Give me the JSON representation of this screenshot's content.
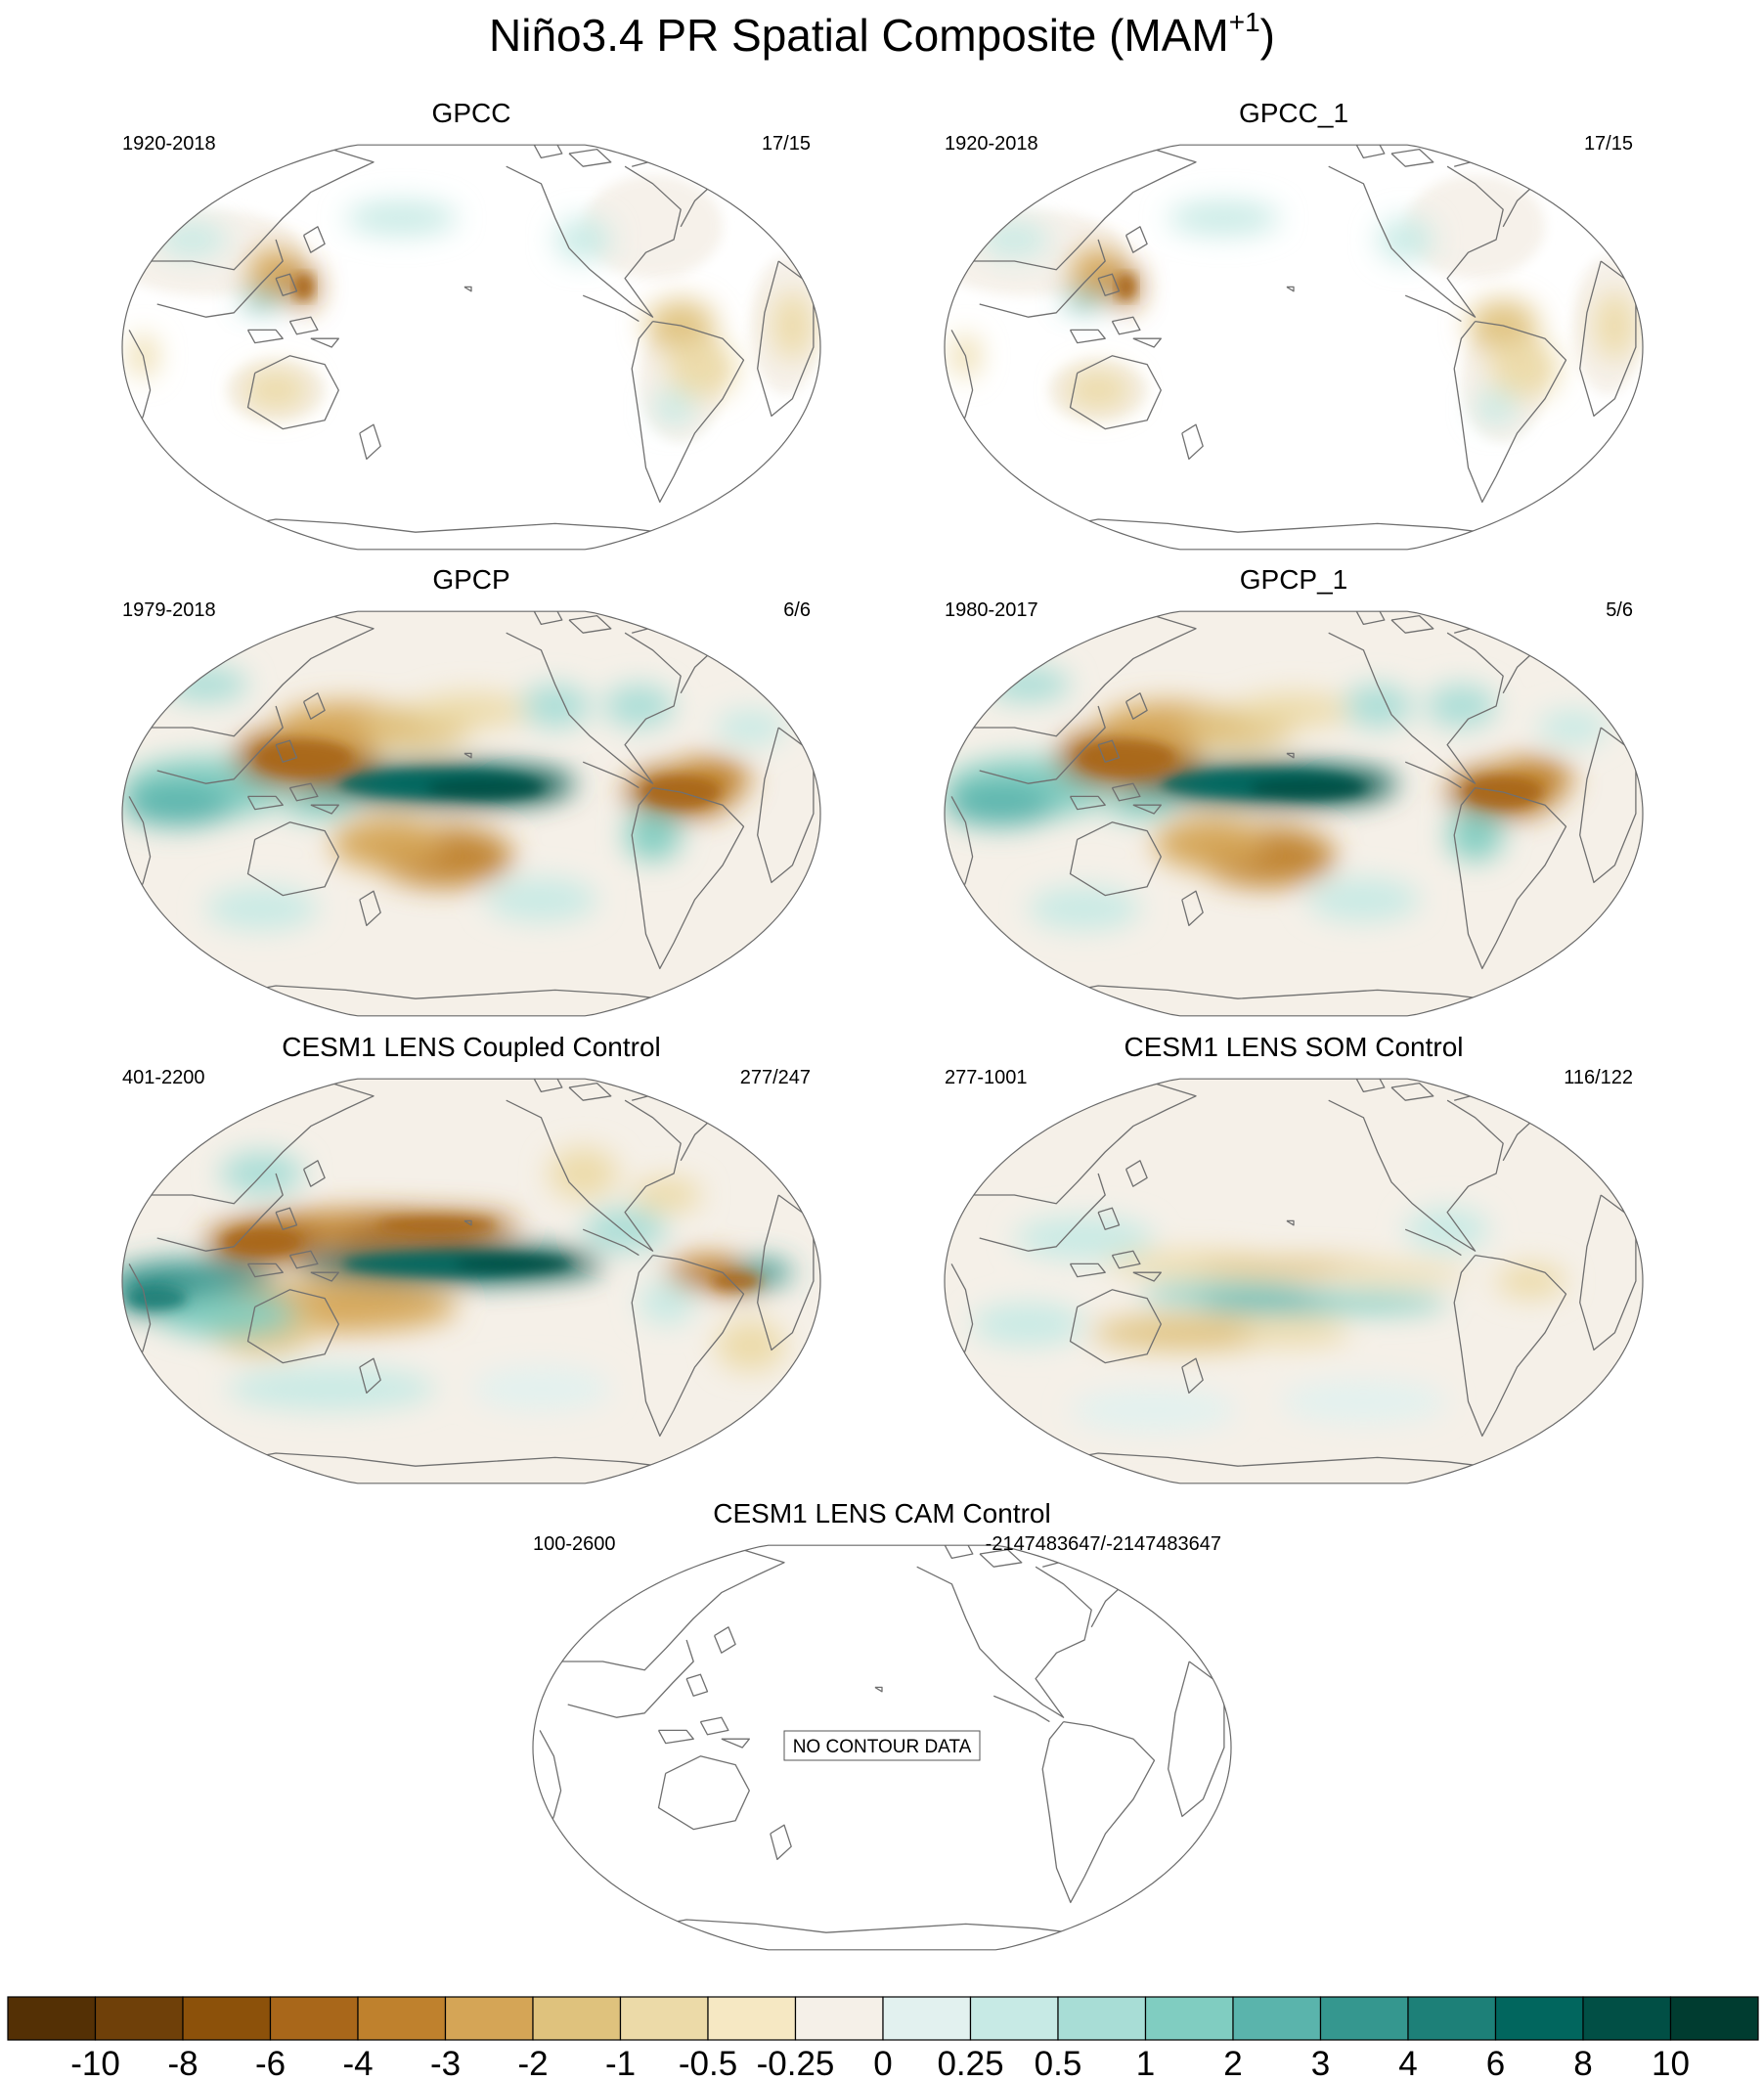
{
  "title": {
    "main": "Niño3.4 PR Spatial Composite (MAM",
    "sup": "+1",
    "close": ")"
  },
  "panels": [
    {
      "id": "gpcc",
      "title": "GPCC",
      "years": "1920-2018",
      "count": "17/15",
      "pattern": "gpcc",
      "nodata": ""
    },
    {
      "id": "gpcc1",
      "title": "GPCC_1",
      "years": "1920-2018",
      "count": "17/15",
      "pattern": "gpcc",
      "nodata": ""
    },
    {
      "id": "gpcp",
      "title": "GPCP",
      "years": "1979-2018",
      "count": "6/6",
      "pattern": "gpcp",
      "nodata": ""
    },
    {
      "id": "gpcp1",
      "title": "GPCP_1",
      "years": "1980-2017",
      "count": "5/6",
      "pattern": "gpcp",
      "nodata": ""
    },
    {
      "id": "coupled",
      "title": "CESM1 LENS Coupled Control",
      "years": "401-2200",
      "count": "277/247",
      "pattern": "coupled",
      "nodata": ""
    },
    {
      "id": "som",
      "title": "CESM1 LENS SOM Control",
      "years": "277-1001",
      "count": "116/122",
      "pattern": "som",
      "nodata": ""
    },
    {
      "id": "cam",
      "title": "CESM1 LENS CAM Control",
      "years": "100-2600",
      "count": "-2147483647/-2147483647",
      "pattern": "none",
      "nodata": "NO CONTOUR DATA"
    }
  ],
  "colorbar": {
    "colors": [
      "#543005",
      "#6f4009",
      "#8c510a",
      "#a9671a",
      "#bf812d",
      "#d5a556",
      "#dfc27d",
      "#ecdaa8",
      "#f6e8c3",
      "#f5f0e8",
      "#e2f1ef",
      "#c7eae5",
      "#a8ddd6",
      "#80cdc1",
      "#5ab4ac",
      "#35978f",
      "#1d8078",
      "#01665e",
      "#014f45",
      "#003c30"
    ],
    "labels": [
      "-10",
      "-8",
      "-6",
      "-4",
      "-3",
      "-2",
      "-1",
      "-0.5",
      "-0.25",
      "0",
      "0.25",
      "0.5",
      "1",
      "2",
      "3",
      "4",
      "6",
      "8",
      "10"
    ]
  }
}
